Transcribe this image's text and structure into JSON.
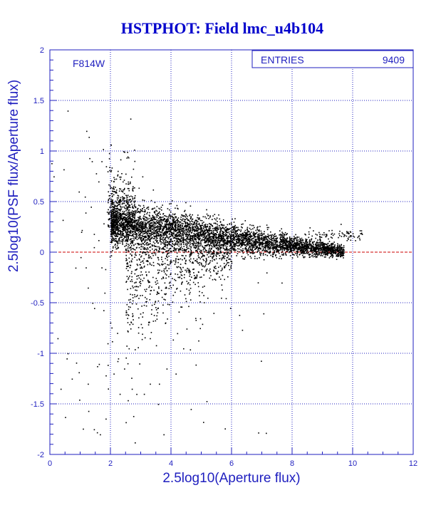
{
  "chart_data": {
    "type": "scatter",
    "title": "HSTPHOT: Field lmc_u4b104",
    "xlabel": "2.5log10(Aperture flux)",
    "ylabel": "2.5log10(PSF flux/Aperture flux)",
    "xlim": [
      0,
      12
    ],
    "ylim": [
      -2,
      2
    ],
    "x_ticks": [
      "0",
      "2",
      "4",
      "6",
      "8",
      "10",
      "12"
    ],
    "y_ticks": [
      "-2",
      "-1.5",
      "-1",
      "-0.5",
      "0",
      "0.5",
      "1",
      "1.5",
      "2"
    ],
    "grid": true,
    "annotation": "F814W",
    "stats": {
      "label": "ENTRIES",
      "value": "9409"
    },
    "reference_line": {
      "y": 0,
      "color": "#cc0000"
    },
    "colors": {
      "axis": "#1f1fbf",
      "grid": "#1f1fbf",
      "points": "#000000",
      "title": "#0000cc"
    },
    "points": [
      [
        0.05,
        0.88
      ],
      [
        0.12,
        0.75
      ],
      [
        0.25,
        -0.85
      ],
      [
        0.45,
        0.82
      ],
      [
        0.58,
        1.4
      ],
      [
        0.42,
        0.32
      ],
      [
        0.35,
        -1.35
      ],
      [
        0.55,
        -1.05
      ],
      [
        0.72,
        -1.25
      ],
      [
        0.95,
        0.6
      ],
      [
        1.05,
        0.22
      ],
      [
        1.15,
        0.55
      ],
      [
        1.2,
        1.2
      ],
      [
        1.28,
        1.14
      ],
      [
        1.3,
        0.93
      ],
      [
        1.38,
        0.9
      ],
      [
        1.35,
        0.45
      ],
      [
        1.25,
        -0.35
      ],
      [
        1.18,
        -0.15
      ],
      [
        1.4,
        -0.5
      ],
      [
        1.45,
        -1.75
      ],
      [
        1.55,
        -1.78
      ],
      [
        1.65,
        -1.8
      ],
      [
        1.52,
        0.78
      ],
      [
        1.6,
        0.7
      ],
      [
        1.7,
        0.9
      ],
      [
        1.75,
        1.02
      ],
      [
        1.85,
        0.85
      ],
      [
        1.6,
        0.12
      ],
      [
        1.7,
        -0.15
      ],
      [
        1.8,
        -0.4
      ],
      [
        1.9,
        -0.9
      ],
      [
        1.25,
        -1.3
      ],
      [
        1.45,
        0.05
      ],
      [
        2.05,
        -0.88
      ],
      [
        2.1,
        -1.2
      ],
      [
        2.3,
        -1.4
      ],
      [
        2.5,
        -1.68
      ],
      [
        2.75,
        -1.62
      ],
      [
        2.8,
        -1.88
      ],
      [
        2.25,
        -1.05
      ],
      [
        2.45,
        -1.15
      ],
      [
        2.6,
        -0.95
      ],
      [
        2.95,
        -1.1
      ],
      [
        3.1,
        -1.4
      ],
      [
        3.3,
        -1.3
      ],
      [
        3.05,
        0.75
      ],
      [
        3.4,
        0.62
      ],
      [
        3.75,
        -1.8
      ],
      [
        4.15,
        -1.2
      ],
      [
        4.4,
        -0.95
      ],
      [
        4.65,
        -1.55
      ],
      [
        4.95,
        -0.75
      ],
      [
        5.4,
        -0.6
      ],
      [
        5.65,
        -0.45
      ],
      [
        5.95,
        -0.55
      ],
      [
        6.25,
        -0.62
      ],
      [
        7.15,
        -0.2
      ],
      [
        7.65,
        -0.3
      ],
      [
        8.2,
        0.05
      ],
      [
        9.2,
        0.05
      ],
      [
        9.6,
        0.28
      ],
      [
        9.3,
        0.22
      ],
      [
        8.9,
        0.18
      ],
      [
        10.3,
        0.18
      ],
      [
        10.15,
        0.15
      ],
      [
        9.8,
        0.12
      ],
      [
        3.6,
        -1.3
      ],
      [
        3.85,
        -1.15
      ],
      [
        2.15,
        0.6
      ],
      [
        2.0,
        0.8
      ],
      [
        1.95,
        0.98
      ],
      [
        2.4,
        0.7
      ],
      [
        2.65,
        0.5
      ],
      [
        1.88,
        0.4
      ],
      [
        6.6,
        0.0
      ],
      [
        6.9,
        -0.05
      ],
      [
        4.8,
        -0.65
      ],
      [
        5.2,
        -0.45
      ],
      [
        3.3,
        -0.85
      ],
      [
        3.5,
        -0.92
      ],
      [
        3.8,
        -0.7
      ],
      [
        4.2,
        -0.8
      ],
      [
        2.7,
        -1.35
      ],
      [
        2.55,
        -0.65
      ]
    ]
  }
}
